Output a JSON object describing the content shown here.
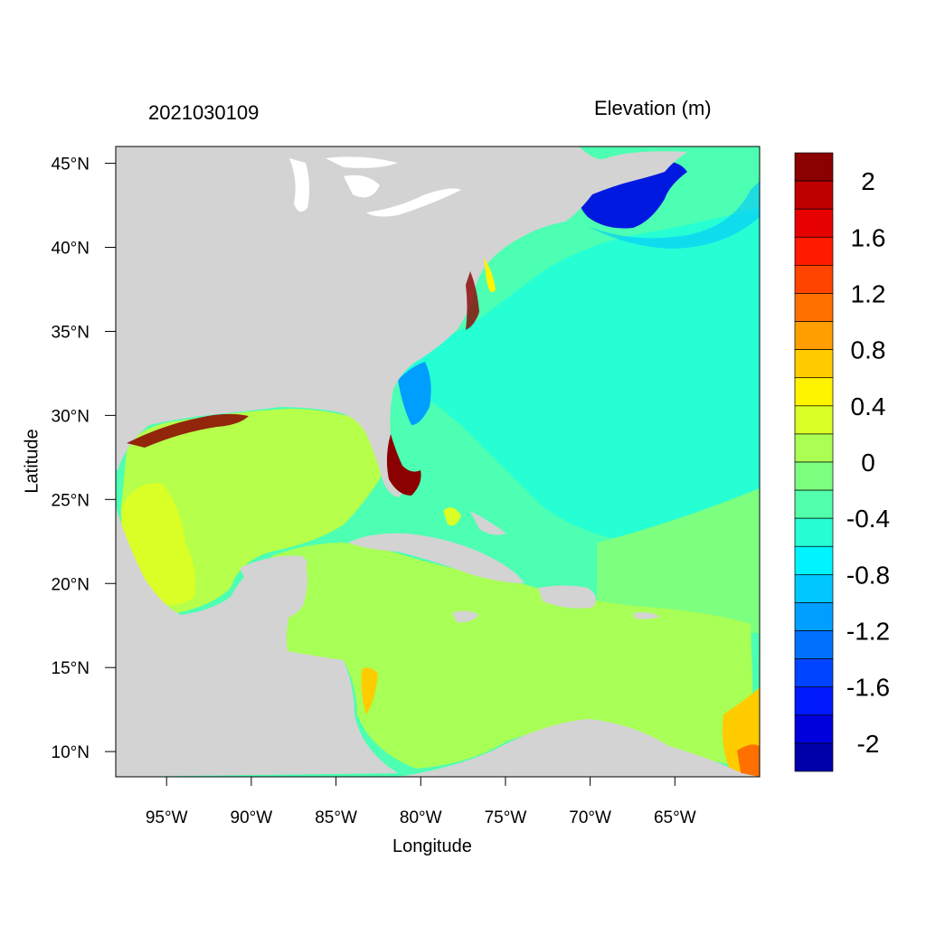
{
  "title_left": "2021030109",
  "title_right": "Elevation (m)",
  "x_axis": {
    "title": "Longitude",
    "ticks": [
      "95°W",
      "90°W",
      "85°W",
      "80°W",
      "75°W",
      "70°W",
      "65°W"
    ],
    "range_deg": [
      -98,
      -60
    ]
  },
  "y_axis": {
    "title": "Latitude",
    "ticks": [
      "10°N",
      "15°N",
      "20°N",
      "25°N",
      "30°N",
      "35°N",
      "40°N",
      "45°N"
    ],
    "range_deg": [
      8.5,
      46
    ]
  },
  "colorbar": {
    "labels": [
      "2",
      "1.6",
      "1.2",
      "0.8",
      "0.4",
      "0",
      "-0.4",
      "-0.8",
      "-1.2",
      "-1.6",
      "-2"
    ],
    "colors_top_to_bottom": [
      "#8b0000",
      "#bf0000",
      "#e60000",
      "#ff1a00",
      "#ff4400",
      "#ff7000",
      "#ff9e00",
      "#ffcc00",
      "#fff400",
      "#d9ff26",
      "#abff52",
      "#7dff80",
      "#52ffaa",
      "#26ffd4",
      "#00f4ff",
      "#00c7ff",
      "#009eff",
      "#0070ff",
      "#0044ff",
      "#0019ff",
      "#0000dd",
      "#0000aa"
    ]
  },
  "colors": {
    "land": "#d3d3d3",
    "gulf": "#b6ff4a",
    "caribbean": "#a8ff55",
    "atlantic": "#4dffb2",
    "coastal_ocean": "#26ffd4",
    "gulf_of_maine": "#0019e0",
    "florida_surge": "#8b0000"
  }
}
